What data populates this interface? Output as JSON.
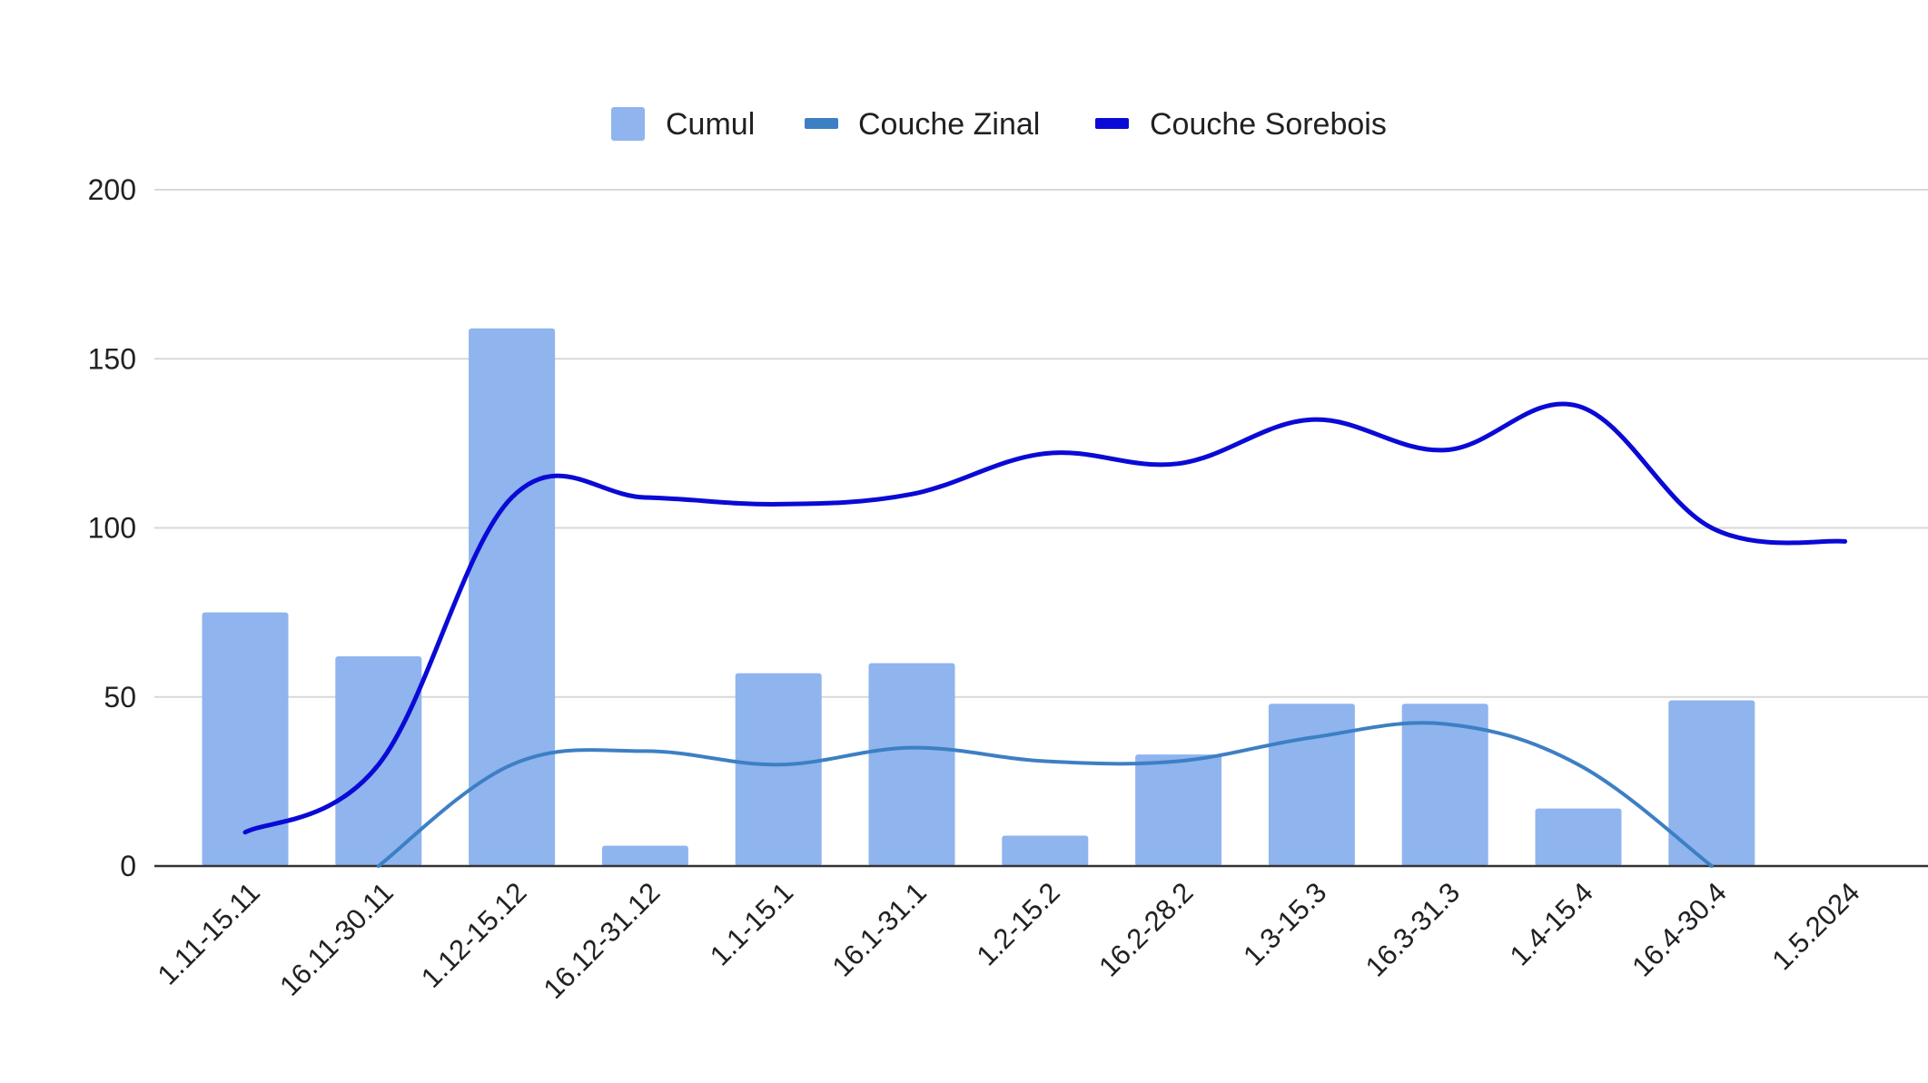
{
  "colors": {
    "cumul": "#8fb4ee",
    "couche_zinal": "#3d7fc4",
    "couche_sorebois": "#0a0ad6",
    "grid": "#d9d9d9",
    "axis": "#333333",
    "background": "#ffffff"
  },
  "chart_data": {
    "type": "bar",
    "title": "",
    "xlabel": "",
    "ylabel": "",
    "ylim": [
      0,
      200
    ],
    "yticks": [
      0,
      50,
      100,
      150,
      200
    ],
    "grid": true,
    "legend_position": "top",
    "categories": [
      "1.11-15.11",
      "16.11-30.11",
      "1.12-15.12",
      "16.12-31.12",
      "1.1-15.1",
      "16.1-31.1",
      "1.2-15.2",
      "16.2-28.2",
      "1.3-15.3",
      "16.3-31.3",
      "1.4-15.4",
      "16.4-30.4",
      "1.5.2024"
    ],
    "series": [
      {
        "name": "Cumul",
        "type": "bar",
        "values": [
          75,
          62,
          159,
          6,
          57,
          60,
          9,
          33,
          48,
          48,
          17,
          49,
          0
        ]
      },
      {
        "name": "Couche Zinal",
        "type": "line",
        "smooth": true,
        "values": [
          null,
          0,
          30,
          34,
          30,
          35,
          31,
          31,
          38,
          42,
          30,
          0,
          null
        ]
      },
      {
        "name": "Couche Sorebois",
        "type": "line",
        "smooth": true,
        "values": [
          10,
          30,
          109,
          109,
          107,
          110,
          122,
          119,
          132,
          123,
          136,
          100,
          96
        ]
      }
    ]
  }
}
